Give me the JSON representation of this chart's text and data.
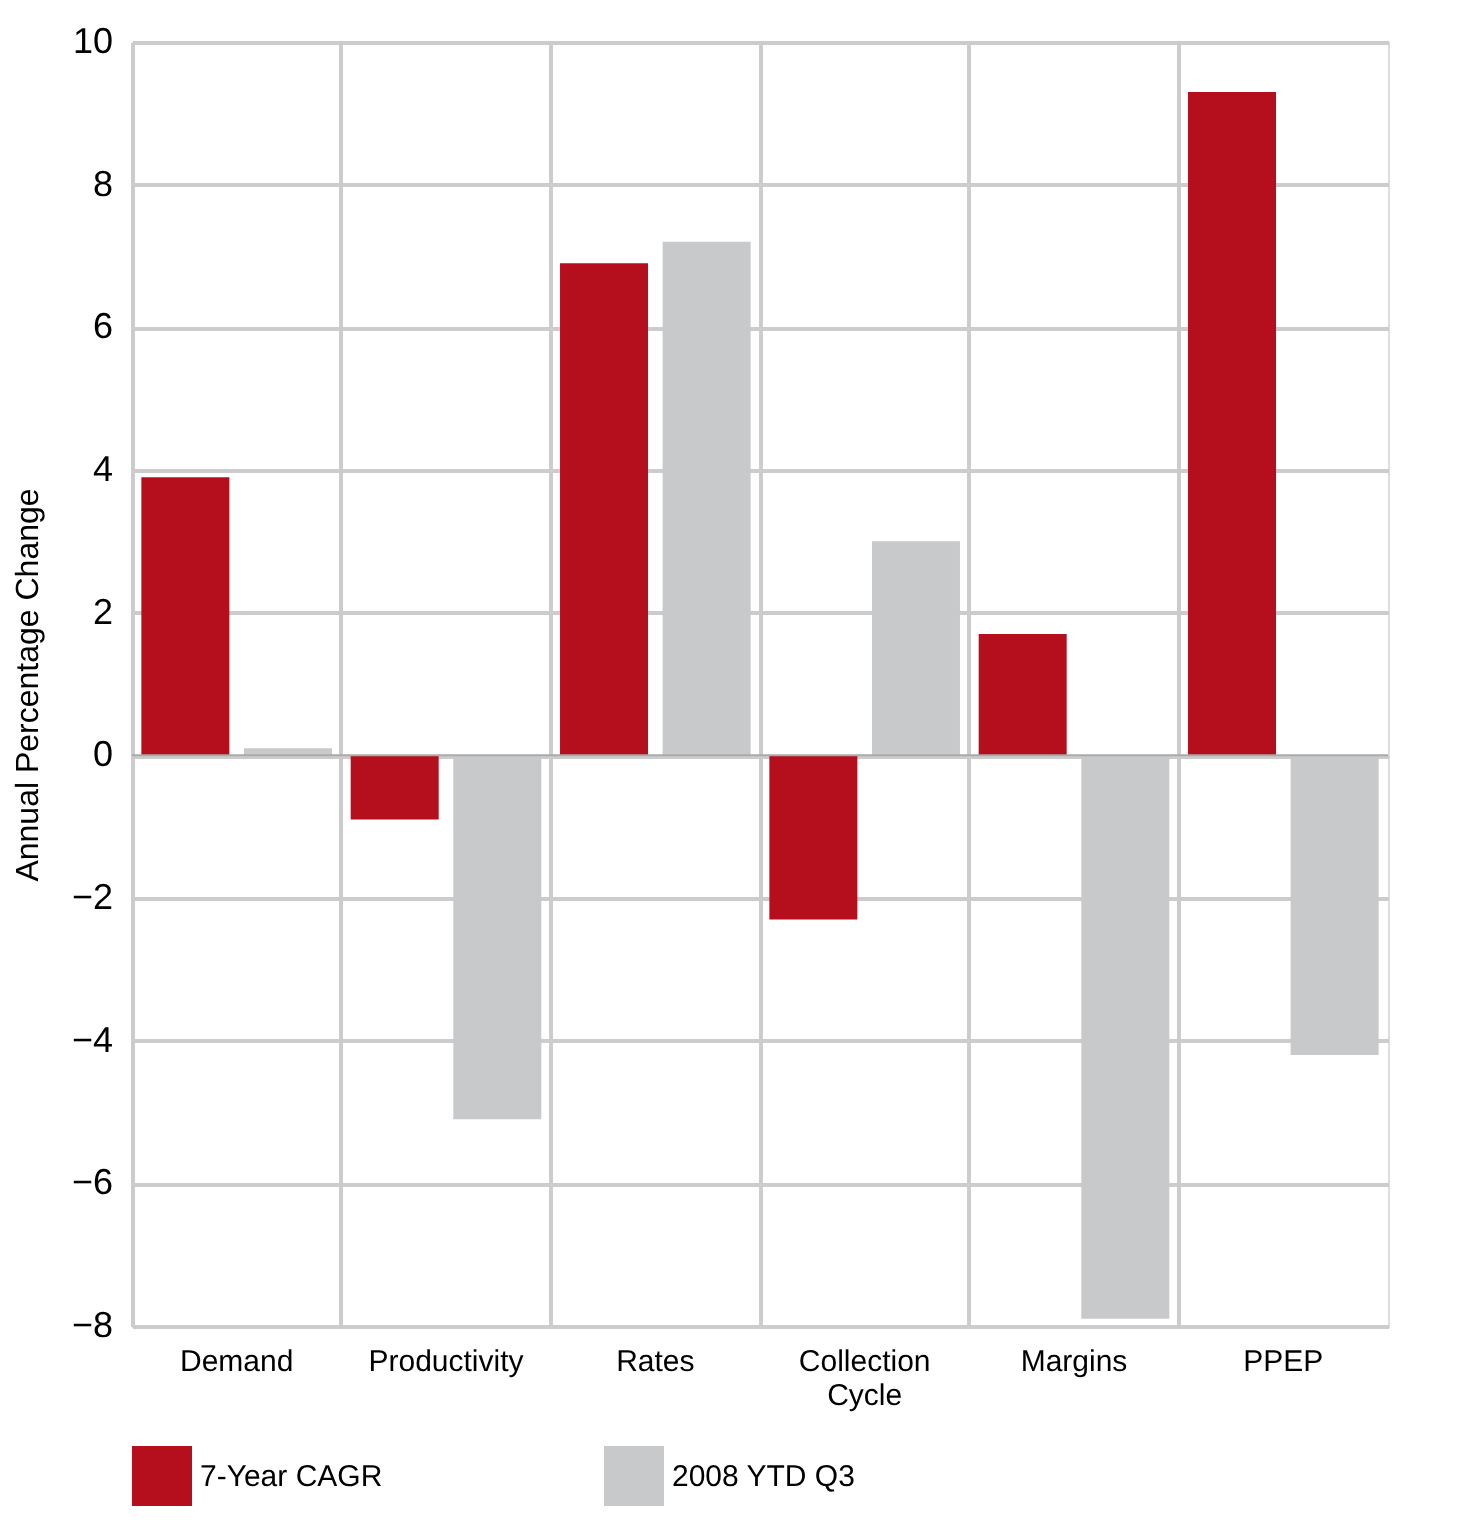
{
  "chart_data": {
    "type": "bar",
    "ylabel": "Annual Percentage Change",
    "categories": [
      "Demand",
      "Productivity",
      "Rates",
      "Collection Cycle",
      "Margins",
      "PPEP"
    ],
    "series": [
      {
        "name": "7-Year CAGR",
        "color": "#b50f1e",
        "values": [
          3.9,
          -0.9,
          6.9,
          -2.3,
          1.7,
          9.3
        ]
      },
      {
        "name": "2008 YTD Q3",
        "color": "#c8c9cb",
        "values": [
          0.1,
          -5.1,
          7.2,
          3.0,
          -7.9,
          -4.2
        ]
      }
    ],
    "ylim": [
      -8,
      10
    ],
    "yticks": [
      -8,
      -6,
      -4,
      -2,
      0,
      2,
      4,
      6,
      8,
      10
    ],
    "grid": true,
    "legend": "bottom"
  }
}
